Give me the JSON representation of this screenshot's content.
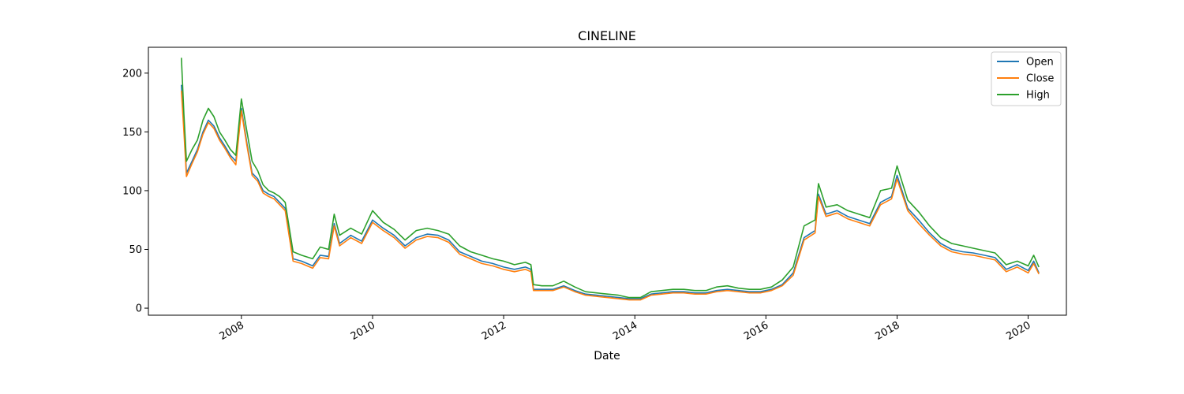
{
  "chart_data": {
    "type": "line",
    "title": "CINELINE",
    "xlabel": "Date",
    "ylabel": "",
    "x_ticks": [
      "2008",
      "2010",
      "2012",
      "2014",
      "2016",
      "2018",
      "2020"
    ],
    "y_ticks": [
      0,
      50,
      100,
      150,
      200
    ],
    "xlim": [
      "2006-08-01",
      "2020-08-01"
    ],
    "ylim": [
      -6,
      222
    ],
    "grid": false,
    "legend_position": "top-right",
    "colors": {
      "Open": "#1f77b4",
      "Close": "#ff7f0e",
      "High": "#2ca02c"
    },
    "x": [
      "2007-02-01",
      "2007-02-15",
      "2007-03-01",
      "2007-04-01",
      "2007-05-01",
      "2007-06-01",
      "2007-07-01",
      "2007-08-01",
      "2007-09-01",
      "2007-10-01",
      "2007-11-01",
      "2007-12-01",
      "2008-01-01",
      "2008-02-01",
      "2008-03-01",
      "2008-04-01",
      "2008-05-01",
      "2008-06-01",
      "2008-07-01",
      "2008-08-01",
      "2008-09-01",
      "2008-10-15",
      "2008-12-01",
      "2009-02-01",
      "2009-03-15",
      "2009-05-01",
      "2009-06-01",
      "2009-07-01",
      "2009-09-01",
      "2009-11-01",
      "2010-01-01",
      "2010-03-01",
      "2010-05-01",
      "2010-07-01",
      "2010-09-01",
      "2010-11-01",
      "2011-01-01",
      "2011-03-01",
      "2011-05-01",
      "2011-07-01",
      "2011-09-01",
      "2011-11-01",
      "2012-01-01",
      "2012-03-01",
      "2012-05-01",
      "2012-06-01",
      "2012-06-15",
      "2012-08-01",
      "2012-10-01",
      "2012-12-01",
      "2013-02-01",
      "2013-04-01",
      "2013-06-01",
      "2013-08-01",
      "2013-10-01",
      "2013-12-01",
      "2014-02-01",
      "2014-04-01",
      "2014-06-01",
      "2014-08-01",
      "2014-10-01",
      "2014-12-01",
      "2015-02-01",
      "2015-04-01",
      "2015-06-01",
      "2015-08-01",
      "2015-10-01",
      "2015-12-01",
      "2016-02-01",
      "2016-04-01",
      "2016-06-01",
      "2016-08-01",
      "2016-10-01",
      "2016-10-20",
      "2016-12-01",
      "2017-02-01",
      "2017-04-01",
      "2017-06-01",
      "2017-08-01",
      "2017-10-01",
      "2017-12-01",
      "2018-01-01",
      "2018-03-01",
      "2018-05-01",
      "2018-07-01",
      "2018-09-01",
      "2018-11-01",
      "2019-01-01",
      "2019-03-01",
      "2019-05-01",
      "2019-07-01",
      "2019-09-01",
      "2019-11-01",
      "2020-01-01",
      "2020-02-01",
      "2020-03-01"
    ],
    "series": [
      {
        "name": "Open",
        "values": [
          190,
          155,
          115,
          125,
          135,
          150,
          160,
          155,
          145,
          138,
          130,
          125,
          170,
          140,
          115,
          110,
          100,
          97,
          95,
          90,
          85,
          42,
          40,
          36,
          45,
          44,
          72,
          55,
          62,
          57,
          75,
          68,
          62,
          53,
          60,
          63,
          62,
          58,
          48,
          44,
          40,
          38,
          35,
          33,
          35,
          33,
          16,
          16,
          16,
          19,
          15,
          12,
          11,
          10,
          9,
          8,
          8,
          12,
          13,
          14,
          14,
          13,
          13,
          15,
          16,
          15,
          14,
          14,
          16,
          20,
          30,
          60,
          66,
          97,
          80,
          83,
          78,
          75,
          72,
          90,
          95,
          113,
          85,
          75,
          64,
          55,
          50,
          48,
          47,
          45,
          43,
          33,
          37,
          32,
          40,
          30
        ]
      },
      {
        "name": "Close",
        "values": [
          185,
          150,
          112,
          123,
          133,
          148,
          158,
          153,
          143,
          136,
          128,
          122,
          168,
          138,
          113,
          108,
          98,
          95,
          93,
          88,
          83,
          40,
          38,
          34,
          43,
          42,
          70,
          53,
          60,
          55,
          73,
          66,
          60,
          51,
          58,
          61,
          60,
          56,
          46,
          42,
          38,
          36,
          33,
          31,
          33,
          31,
          15,
          15,
          15,
          18,
          14,
          11,
          10,
          9,
          8,
          7,
          7,
          11,
          12,
          13,
          13,
          12,
          12,
          14,
          15,
          14,
          13,
          13,
          15,
          19,
          28,
          58,
          64,
          95,
          78,
          81,
          76,
          73,
          70,
          88,
          93,
          110,
          83,
          72,
          62,
          53,
          48,
          46,
          45,
          43,
          41,
          31,
          35,
          30,
          38,
          29
        ]
      },
      {
        "name": "High",
        "values": [
          213,
          165,
          125,
          135,
          143,
          160,
          170,
          163,
          150,
          143,
          135,
          130,
          178,
          150,
          125,
          117,
          105,
          100,
          98,
          95,
          90,
          48,
          45,
          42,
          52,
          50,
          80,
          62,
          68,
          63,
          83,
          73,
          67,
          58,
          66,
          68,
          66,
          63,
          53,
          48,
          45,
          42,
          40,
          37,
          39,
          37,
          20,
          19,
          19,
          23,
          18,
          14,
          13,
          12,
          11,
          9,
          9,
          14,
          15,
          16,
          16,
          15,
          15,
          18,
          19,
          17,
          16,
          16,
          18,
          24,
          35,
          70,
          75,
          106,
          86,
          88,
          83,
          80,
          77,
          100,
          102,
          121,
          92,
          82,
          70,
          60,
          55,
          53,
          51,
          49,
          47,
          37,
          40,
          36,
          45,
          35
        ]
      }
    ]
  }
}
